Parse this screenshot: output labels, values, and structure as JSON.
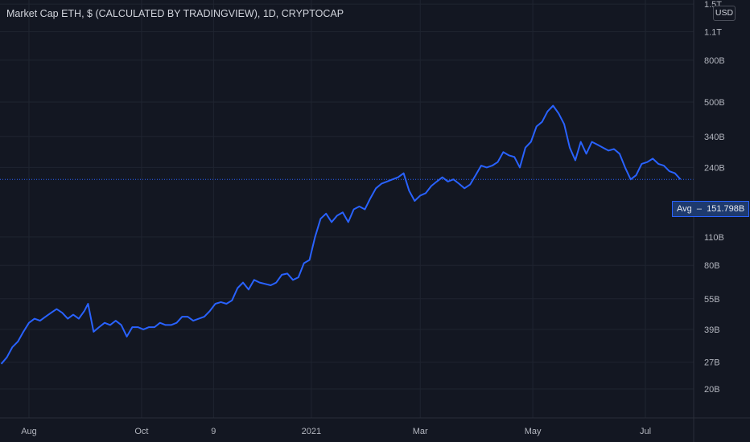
{
  "header": {
    "title": "Market Cap ETH, $ (CALCULATED BY TRADINGVIEW), 1D, CRYPTOCAP",
    "currency_button": "USD"
  },
  "avg_badge": {
    "label": "Avg",
    "value": "151.798B"
  },
  "colors": {
    "background": "#131722",
    "line": "#2962ff",
    "grid": "#1f2430",
    "text": "#b2b5be"
  },
  "chart_data": {
    "type": "line",
    "title": "Market Cap ETH, $ (CALCULATED BY TRADINGVIEW), 1D, CRYPTOCAP",
    "scale": "log",
    "grid": true,
    "legend": "none",
    "x_range": [
      "2020-07-17",
      "2021-07-28"
    ],
    "y_ticks": [
      {
        "label": "20B",
        "value": 20
      },
      {
        "label": "27B",
        "value": 27
      },
      {
        "label": "39B",
        "value": 39
      },
      {
        "label": "55B",
        "value": 55
      },
      {
        "label": "80B",
        "value": 80
      },
      {
        "label": "110B",
        "value": 110
      },
      {
        "label": "240B",
        "value": 240
      },
      {
        "label": "340B",
        "value": 340
      },
      {
        "label": "500B",
        "value": 500
      },
      {
        "label": "800B",
        "value": 800
      },
      {
        "label": "1.1T",
        "value": 1100
      },
      {
        "label": "1.5T",
        "value": 1500
      }
    ],
    "x_ticks": [
      {
        "label": "Aug",
        "date": "2020-08-01"
      },
      {
        "label": "Oct",
        "date": "2020-10-01"
      },
      {
        "label": "9",
        "date": "2020-11-09"
      },
      {
        "label": "2021",
        "date": "2021-01-01"
      },
      {
        "label": "Mar",
        "date": "2021-03-01"
      },
      {
        "label": "May",
        "date": "2021-05-01"
      },
      {
        "label": "Jul",
        "date": "2021-07-01"
      }
    ],
    "average": 151.798,
    "series": [
      {
        "color": "#2962ff",
        "points": [
          [
            "2020-07-17",
            26.5
          ],
          [
            "2020-07-20",
            28.5
          ],
          [
            "2020-07-23",
            32
          ],
          [
            "2020-07-26",
            34
          ],
          [
            "2020-07-29",
            38
          ],
          [
            "2020-08-01",
            42
          ],
          [
            "2020-08-04",
            44
          ],
          [
            "2020-08-07",
            43
          ],
          [
            "2020-08-10",
            45
          ],
          [
            "2020-08-13",
            47
          ],
          [
            "2020-08-16",
            49
          ],
          [
            "2020-08-19",
            47
          ],
          [
            "2020-08-22",
            44
          ],
          [
            "2020-08-25",
            46
          ],
          [
            "2020-08-28",
            44
          ],
          [
            "2020-08-31",
            48
          ],
          [
            "2020-09-02",
            52
          ],
          [
            "2020-09-05",
            38
          ],
          [
            "2020-09-08",
            40
          ],
          [
            "2020-09-11",
            42
          ],
          [
            "2020-09-14",
            41
          ],
          [
            "2020-09-17",
            43
          ],
          [
            "2020-09-20",
            41
          ],
          [
            "2020-09-23",
            36
          ],
          [
            "2020-09-26",
            40
          ],
          [
            "2020-09-29",
            40
          ],
          [
            "2020-10-02",
            39
          ],
          [
            "2020-10-05",
            40
          ],
          [
            "2020-10-08",
            40
          ],
          [
            "2020-10-11",
            42
          ],
          [
            "2020-10-14",
            41
          ],
          [
            "2020-10-17",
            41
          ],
          [
            "2020-10-20",
            42
          ],
          [
            "2020-10-23",
            45
          ],
          [
            "2020-10-26",
            45
          ],
          [
            "2020-10-29",
            43
          ],
          [
            "2020-11-01",
            44
          ],
          [
            "2020-11-04",
            45
          ],
          [
            "2020-11-07",
            48
          ],
          [
            "2020-11-10",
            52
          ],
          [
            "2020-11-13",
            53
          ],
          [
            "2020-11-16",
            52
          ],
          [
            "2020-11-19",
            54
          ],
          [
            "2020-11-22",
            62
          ],
          [
            "2020-11-25",
            66
          ],
          [
            "2020-11-28",
            61
          ],
          [
            "2020-12-01",
            68
          ],
          [
            "2020-12-04",
            66
          ],
          [
            "2020-12-07",
            65
          ],
          [
            "2020-12-10",
            64
          ],
          [
            "2020-12-13",
            66
          ],
          [
            "2020-12-16",
            72
          ],
          [
            "2020-12-19",
            73
          ],
          [
            "2020-12-22",
            68
          ],
          [
            "2020-12-25",
            70
          ],
          [
            "2020-12-28",
            82
          ],
          [
            "2020-12-31",
            85
          ],
          [
            "2021-01-03",
            110
          ],
          [
            "2021-01-06",
            135
          ],
          [
            "2021-01-09",
            143
          ],
          [
            "2021-01-12",
            130
          ],
          [
            "2021-01-15",
            140
          ],
          [
            "2021-01-18",
            145
          ],
          [
            "2021-01-21",
            130
          ],
          [
            "2021-01-24",
            150
          ],
          [
            "2021-01-27",
            155
          ],
          [
            "2021-01-30",
            150
          ],
          [
            "2021-02-02",
            170
          ],
          [
            "2021-02-05",
            190
          ],
          [
            "2021-02-08",
            200
          ],
          [
            "2021-02-11",
            205
          ],
          [
            "2021-02-14",
            210
          ],
          [
            "2021-02-17",
            215
          ],
          [
            "2021-02-20",
            225
          ],
          [
            "2021-02-23",
            185
          ],
          [
            "2021-02-26",
            165
          ],
          [
            "2021-03-01",
            175
          ],
          [
            "2021-03-04",
            180
          ],
          [
            "2021-03-07",
            195
          ],
          [
            "2021-03-10",
            205
          ],
          [
            "2021-03-13",
            215
          ],
          [
            "2021-03-16",
            205
          ],
          [
            "2021-03-19",
            210
          ],
          [
            "2021-03-22",
            200
          ],
          [
            "2021-03-25",
            190
          ],
          [
            "2021-03-28",
            198
          ],
          [
            "2021-03-31",
            220
          ],
          [
            "2021-04-03",
            245
          ],
          [
            "2021-04-06",
            240
          ],
          [
            "2021-04-09",
            245
          ],
          [
            "2021-04-12",
            255
          ],
          [
            "2021-04-15",
            285
          ],
          [
            "2021-04-18",
            275
          ],
          [
            "2021-04-21",
            270
          ],
          [
            "2021-04-24",
            240
          ],
          [
            "2021-04-27",
            300
          ],
          [
            "2021-04-30",
            320
          ],
          [
            "2021-05-03",
            380
          ],
          [
            "2021-05-06",
            400
          ],
          [
            "2021-05-09",
            450
          ],
          [
            "2021-05-12",
            480
          ],
          [
            "2021-05-15",
            440
          ],
          [
            "2021-05-18",
            390
          ],
          [
            "2021-05-21",
            300
          ],
          [
            "2021-05-24",
            260
          ],
          [
            "2021-05-27",
            320
          ],
          [
            "2021-05-30",
            280
          ],
          [
            "2021-06-02",
            320
          ],
          [
            "2021-06-05",
            310
          ],
          [
            "2021-06-08",
            300
          ],
          [
            "2021-06-11",
            290
          ],
          [
            "2021-06-14",
            295
          ],
          [
            "2021-06-17",
            280
          ],
          [
            "2021-06-20",
            240
          ],
          [
            "2021-06-23",
            210
          ],
          [
            "2021-06-26",
            220
          ],
          [
            "2021-06-29",
            250
          ],
          [
            "2021-07-02",
            255
          ],
          [
            "2021-07-05",
            265
          ],
          [
            "2021-07-08",
            250
          ],
          [
            "2021-07-11",
            245
          ],
          [
            "2021-07-14",
            230
          ],
          [
            "2021-07-17",
            225
          ],
          [
            "2021-07-20",
            210
          ]
        ]
      }
    ]
  }
}
